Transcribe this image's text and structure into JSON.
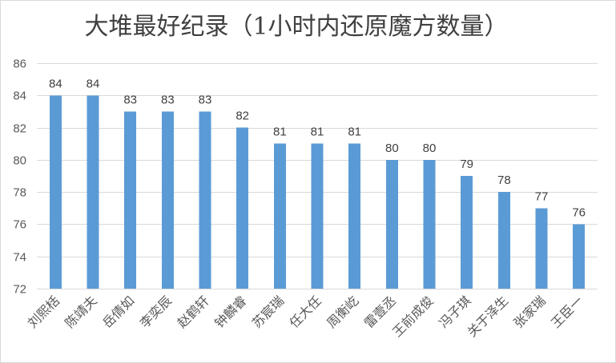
{
  "chart_data": {
    "type": "bar",
    "title": "大堆最好纪录（1小时内还原魔方数量）",
    "xlabel": "",
    "ylabel": "",
    "ylim": [
      72,
      86
    ],
    "yticks": [
      72,
      74,
      76,
      78,
      80,
      82,
      84,
      86
    ],
    "grid": true,
    "bar_color": "#5b9bd5",
    "categories": [
      "刘熙栝",
      "陈靖夫",
      "岳倩如",
      "李奕辰",
      "赵鹤轩",
      "钟麟睿",
      "苏宸瑞",
      "任大任",
      "周衡屹",
      "雷壹丞",
      "王前成俊",
      "冯子琪",
      "关于泽生",
      "张家瑞",
      "王臣一"
    ],
    "values": [
      84,
      84,
      83,
      83,
      83,
      82,
      81,
      81,
      81,
      80,
      80,
      79,
      78,
      77,
      76
    ],
    "data_labels": [
      "84",
      "84",
      "83",
      "83",
      "83",
      "82",
      "81",
      "81",
      "81",
      "80",
      "80",
      "79",
      "78",
      "77",
      "76"
    ]
  }
}
